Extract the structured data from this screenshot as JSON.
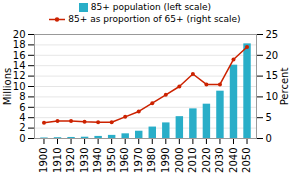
{
  "chart_data": {
    "type": "bar",
    "x": [
      1900,
      1910,
      1920,
      1930,
      1940,
      1950,
      1960,
      1970,
      1980,
      1990,
      2000,
      2010,
      2020,
      2030,
      2040,
      2050
    ],
    "series": [
      {
        "name": "85+ population (left scale)",
        "type": "bar",
        "color": "#29aec8",
        "values": [
          0.1,
          0.15,
          0.2,
          0.25,
          0.4,
          0.6,
          0.9,
          1.4,
          2.2,
          3.0,
          4.2,
          5.7,
          6.6,
          9.1,
          14.1,
          18.2
        ]
      },
      {
        "name": "85+ as proportion of 65+ (right scale)",
        "type": "line",
        "color": "#cc2200",
        "marker": "circle",
        "axis": "y2",
        "values": [
          3.8,
          4.2,
          4.2,
          4.0,
          3.9,
          3.9,
          5.2,
          6.5,
          8.5,
          10.5,
          12.5,
          15.5,
          13.0,
          13.0,
          19.0,
          22.0
        ]
      }
    ],
    "xlim": [
      1893,
      2057
    ],
    "xticks": [
      1900,
      1910,
      1920,
      1930,
      1940,
      1950,
      1960,
      1970,
      1980,
      1990,
      2000,
      2010,
      2020,
      2030,
      2040,
      2050
    ],
    "ylim": [
      0,
      20
    ],
    "yticks": [
      0,
      2,
      4,
      6,
      8,
      10,
      12,
      14,
      16,
      18,
      20
    ],
    "y2lim": [
      0,
      25
    ],
    "y2ticks": [
      0,
      5,
      10,
      15,
      20,
      25
    ],
    "ylabel": "Millions",
    "y2label": "Percent",
    "grid": true,
    "legend": "top"
  }
}
